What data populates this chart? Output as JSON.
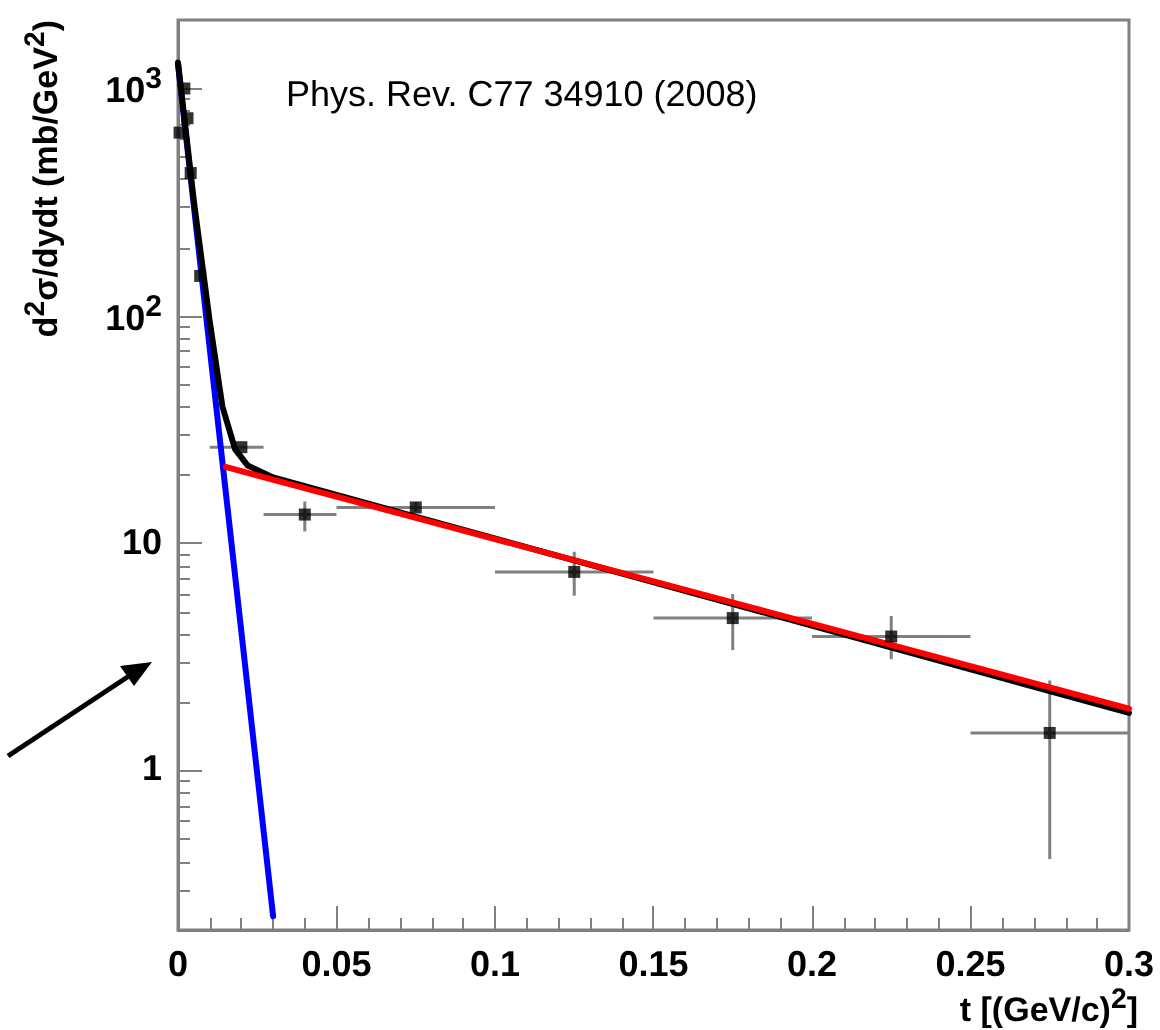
{
  "chart_data": {
    "type": "scatter",
    "xlabel": "t [(GeV/c)$^{2}$]",
    "ylabel": "d$^{2}$σ/dydt (mb/GeV$^{2}$)",
    "annotations": [
      "Phys. Rev. C77 34910 (2008)"
    ],
    "log": "y",
    "grid": false,
    "marker": "square",
    "xlim": [
      0,
      0.3
    ],
    "xticks": [
      0,
      0.05,
      0.1,
      0.15,
      0.2,
      0.25,
      0.3
    ],
    "ylim": [
      0.2,
      2000
    ],
    "yticks": [
      1,
      10,
      {
        "value": 100,
        "label": "10$^{2}$"
      },
      {
        "value": 1000,
        "label": "10$^{3}$"
      }
    ],
    "series": [
      {
        "type": "line",
        "color": "#0000ff",
        "marker": "none",
        "x": [
          0,
          0.03
        ],
        "values": [
          1280,
          0.23
        ]
      },
      {
        "type": "line",
        "color": "#000000",
        "marker": "none",
        "x": [
          0,
          0.005,
          0.01,
          0.014,
          0.018,
          0.022,
          0.03,
          0.3
        ],
        "values": [
          1300,
          320,
          95,
          40,
          26,
          22,
          19.5,
          1.8
        ]
      },
      {
        "type": "line",
        "color": "#ff0000",
        "marker": "none",
        "x": [
          0.015,
          0.3
        ],
        "values": [
          21.7,
          1.88
        ]
      },
      {
        "color": "#000000",
        "x": [
          0.0005,
          0.002,
          0.003,
          0.004,
          0.007,
          0.02,
          0.04,
          0.075,
          0.125,
          0.175,
          0.225,
          0.275
        ],
        "values": [
          640,
          1000,
          740,
          425,
          150,
          26.5,
          13.4,
          14.4,
          7.5,
          4.7,
          3.9,
          1.47
        ],
        "errors": [
          null,
          null,
          null,
          null,
          null,
          null,
          [
            11.3,
            15.3
          ],
          [
            13.8,
            15.2
          ],
          [
            5.9,
            9.2
          ],
          [
            3.4,
            6.0
          ],
          [
            3.1,
            4.8
          ],
          [
            0.41,
            2.5
          ]
        ],
        "xerrors": [
          null,
          null,
          null,
          null,
          null,
          [
            0.01,
            0.027
          ],
          [
            0.027,
            0.05
          ],
          [
            0.05,
            0.1
          ],
          [
            0.1,
            0.15
          ],
          [
            0.15,
            0.2
          ],
          [
            0.2,
            0.25
          ],
          [
            0.25,
            0.3
          ]
        ]
      }
    ]
  }
}
